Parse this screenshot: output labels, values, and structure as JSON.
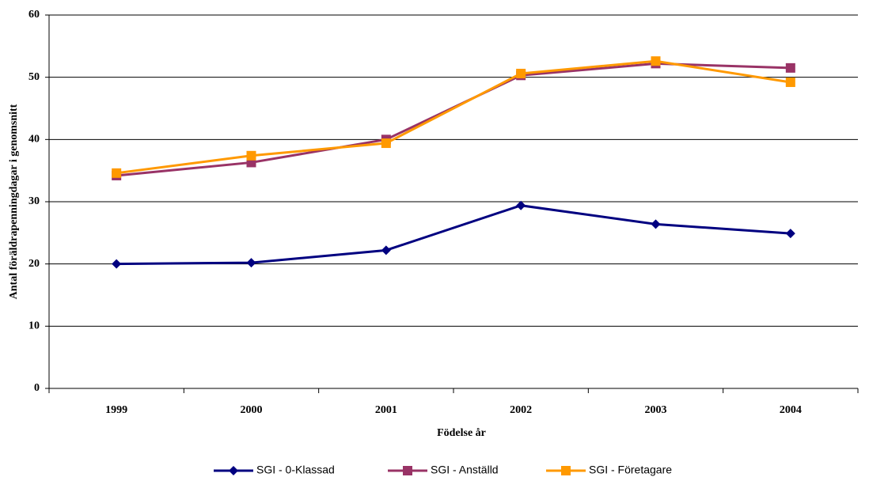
{
  "chart_data": {
    "type": "line",
    "x_label": "Födelse år",
    "y_label": "Antal föräldrapenningdagar i genomsnitt",
    "categories": [
      "1999",
      "2000",
      "2001",
      "2002",
      "2003",
      "2004"
    ],
    "series": [
      {
        "name": "SGI - 0-Klassad",
        "color": "#000080",
        "marker": "diamond",
        "values": [
          20.0,
          20.2,
          22.2,
          29.4,
          26.4,
          24.9
        ]
      },
      {
        "name": "SGI - Anställd",
        "color": "#993366",
        "marker": "square",
        "values": [
          34.2,
          36.3,
          40.0,
          50.3,
          52.2,
          51.5
        ]
      },
      {
        "name": "SGI - Företagare",
        "color": "#ff9900",
        "marker": "square",
        "values": [
          34.6,
          37.4,
          39.4,
          50.6,
          52.6,
          49.2
        ]
      }
    ],
    "ylim": [
      0,
      60
    ],
    "yticks": [
      0,
      10,
      20,
      30,
      40,
      50,
      60
    ],
    "grid": true
  }
}
